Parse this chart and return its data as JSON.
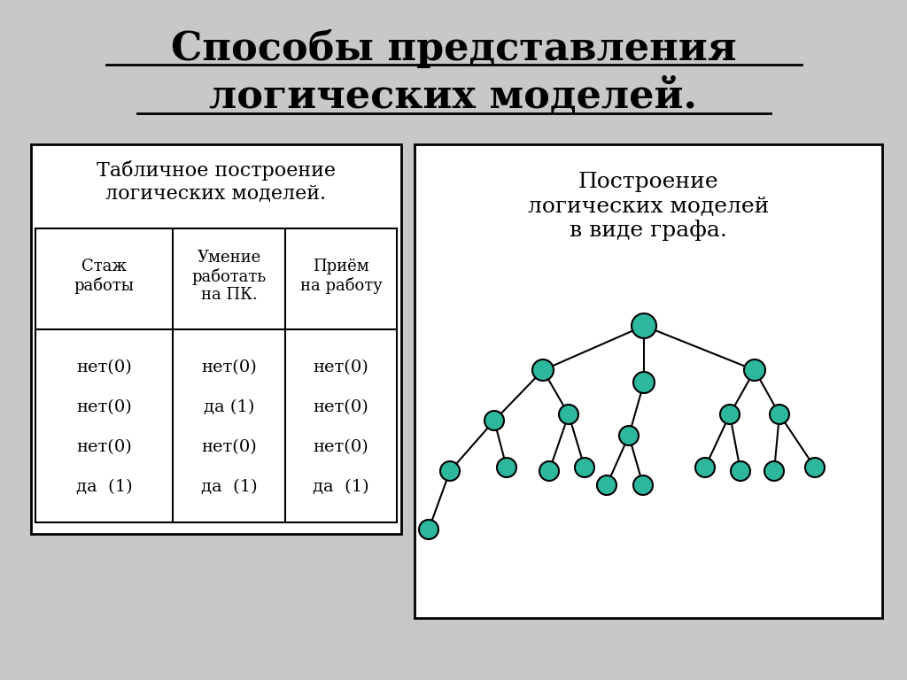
{
  "title_line1": "Способы представления",
  "title_line2": "логических моделей.",
  "bg_color": "#c8c8c8",
  "left_box_title": "Табличное построение\nлогических моделей.",
  "right_box_title": "Построение\nлогических моделей\nв виде графа.",
  "table_headers": [
    "Стаж\nработы",
    "Умение\nработать\nна ПК.",
    "Приём\nна работу"
  ],
  "table_col1": [
    "нет(0)",
    "нет(0)",
    "нет(0)",
    "да  (1)"
  ],
  "table_col2": [
    "нет(0)",
    "да (1)",
    "нет(0)",
    "да  (1)"
  ],
  "table_col3": [
    "нет(0)",
    "нет(0)",
    "нет(0)",
    "да  (1)"
  ],
  "node_color": "#2db89e",
  "node_edge_color": "#000000",
  "edge_color": "#000000"
}
